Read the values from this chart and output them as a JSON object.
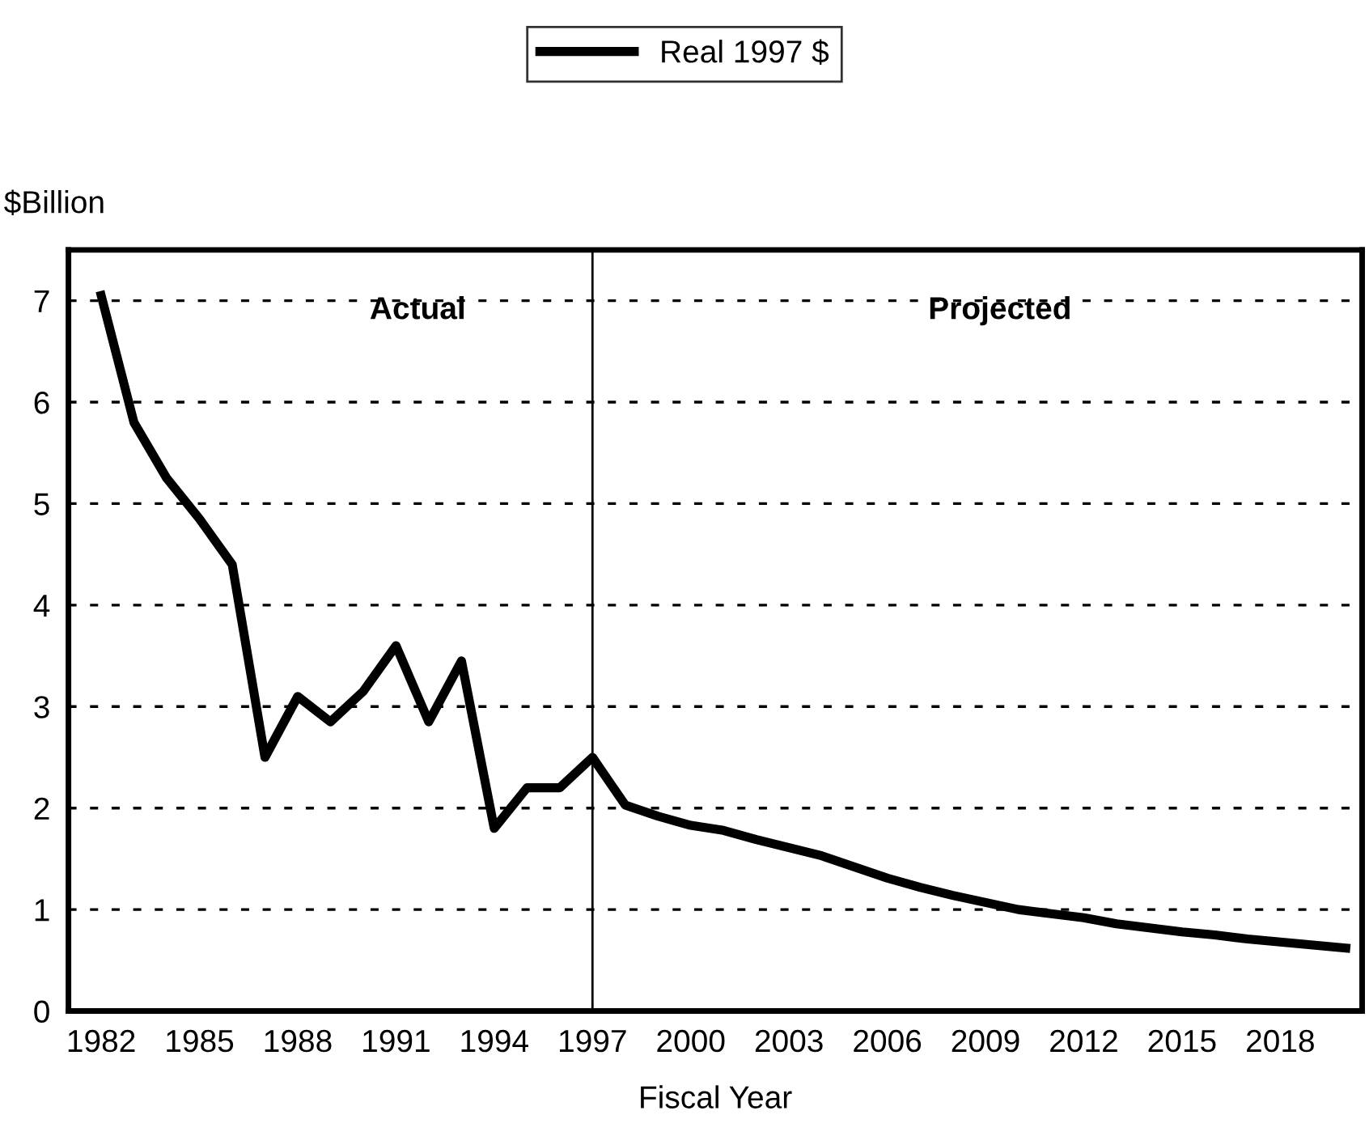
{
  "chart_data": {
    "type": "line",
    "xlabel": "Fiscal Year",
    "ylabel": "$Billion",
    "x": [
      1982,
      1983,
      1984,
      1985,
      1986,
      1987,
      1988,
      1989,
      1990,
      1991,
      1992,
      1993,
      1994,
      1995,
      1996,
      1997,
      1998,
      1999,
      2000,
      2001,
      2002,
      2003,
      2004,
      2005,
      2006,
      2007,
      2008,
      2009,
      2010,
      2011,
      2012,
      2013,
      2014,
      2015,
      2016,
      2017,
      2018,
      2019,
      2020
    ],
    "series": [
      {
        "name": "Real 1997 $",
        "color": "#000000",
        "values": [
          7.05,
          5.8,
          5.25,
          4.85,
          4.4,
          2.5,
          3.1,
          2.85,
          3.15,
          3.6,
          2.85,
          3.45,
          1.8,
          2.2,
          2.2,
          2.5,
          2.03,
          1.92,
          1.83,
          1.78,
          1.69,
          1.61,
          1.53,
          1.42,
          1.31,
          1.22,
          1.14,
          1.07,
          1.0,
          0.96,
          0.92,
          0.86,
          0.82,
          0.78,
          0.75,
          0.71,
          0.68,
          0.65,
          0.62
        ]
      }
    ],
    "xlim": [
      1981,
      2020.5
    ],
    "xticks": [
      1982,
      1985,
      1988,
      1991,
      1994,
      1997,
      2000,
      2003,
      2006,
      2009,
      2012,
      2015,
      2018
    ],
    "ylim": [
      0,
      7.5
    ],
    "yticks": [
      0,
      1,
      2,
      3,
      4,
      5,
      6,
      7
    ],
    "grid": "y",
    "legend": "top",
    "marker": "none",
    "line_style": "solid",
    "ref_lines": [
      {
        "axis": "x",
        "value": 1997,
        "color": "#000000",
        "line_style": "solid"
      }
    ],
    "annotations": [
      "Actual",
      "Projected"
    ]
  }
}
